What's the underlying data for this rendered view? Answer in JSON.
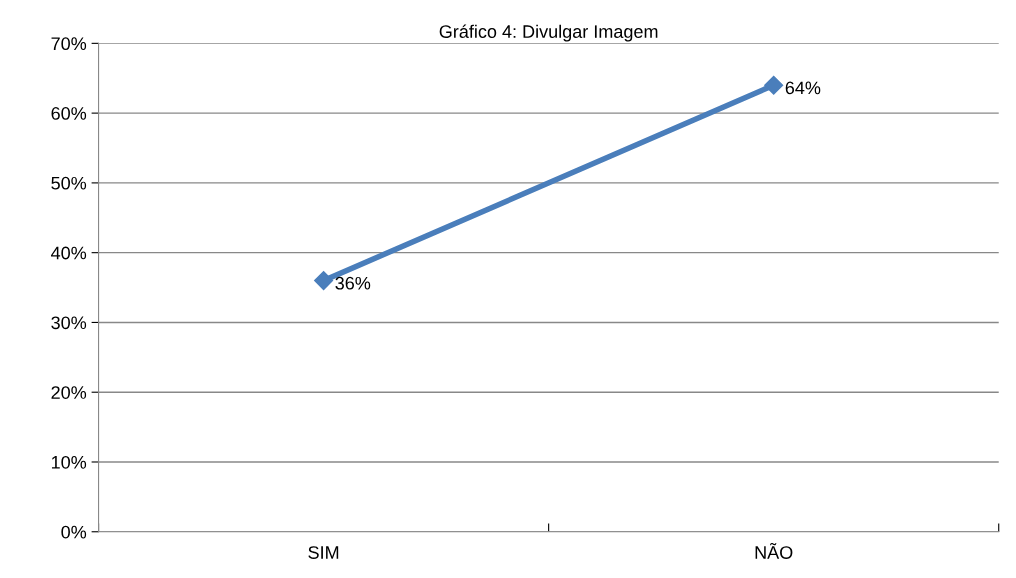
{
  "chart_data": {
    "type": "line",
    "title": "Gráfico 4: Divulgar Imagem",
    "categories": [
      "SIM",
      "NÃO"
    ],
    "series": [
      {
        "color": "#4a7ebb",
        "values": [
          36,
          64
        ]
      }
    ],
    "value_labels": [
      "36%",
      "64%"
    ],
    "ylim": [
      0,
      70
    ],
    "yticks": [
      {
        "value": 0,
        "label": "0%"
      },
      {
        "value": 10,
        "label": "10%"
      },
      {
        "value": 20,
        "label": "20%"
      },
      {
        "value": 30,
        "label": "30%"
      },
      {
        "value": 40,
        "label": "40%"
      },
      {
        "value": 50,
        "label": "50%"
      },
      {
        "value": 60,
        "label": "60%"
      },
      {
        "value": 70,
        "label": "70%"
      }
    ],
    "grid": "y",
    "marker": "diamond",
    "line_style": "solid",
    "legend": false
  }
}
